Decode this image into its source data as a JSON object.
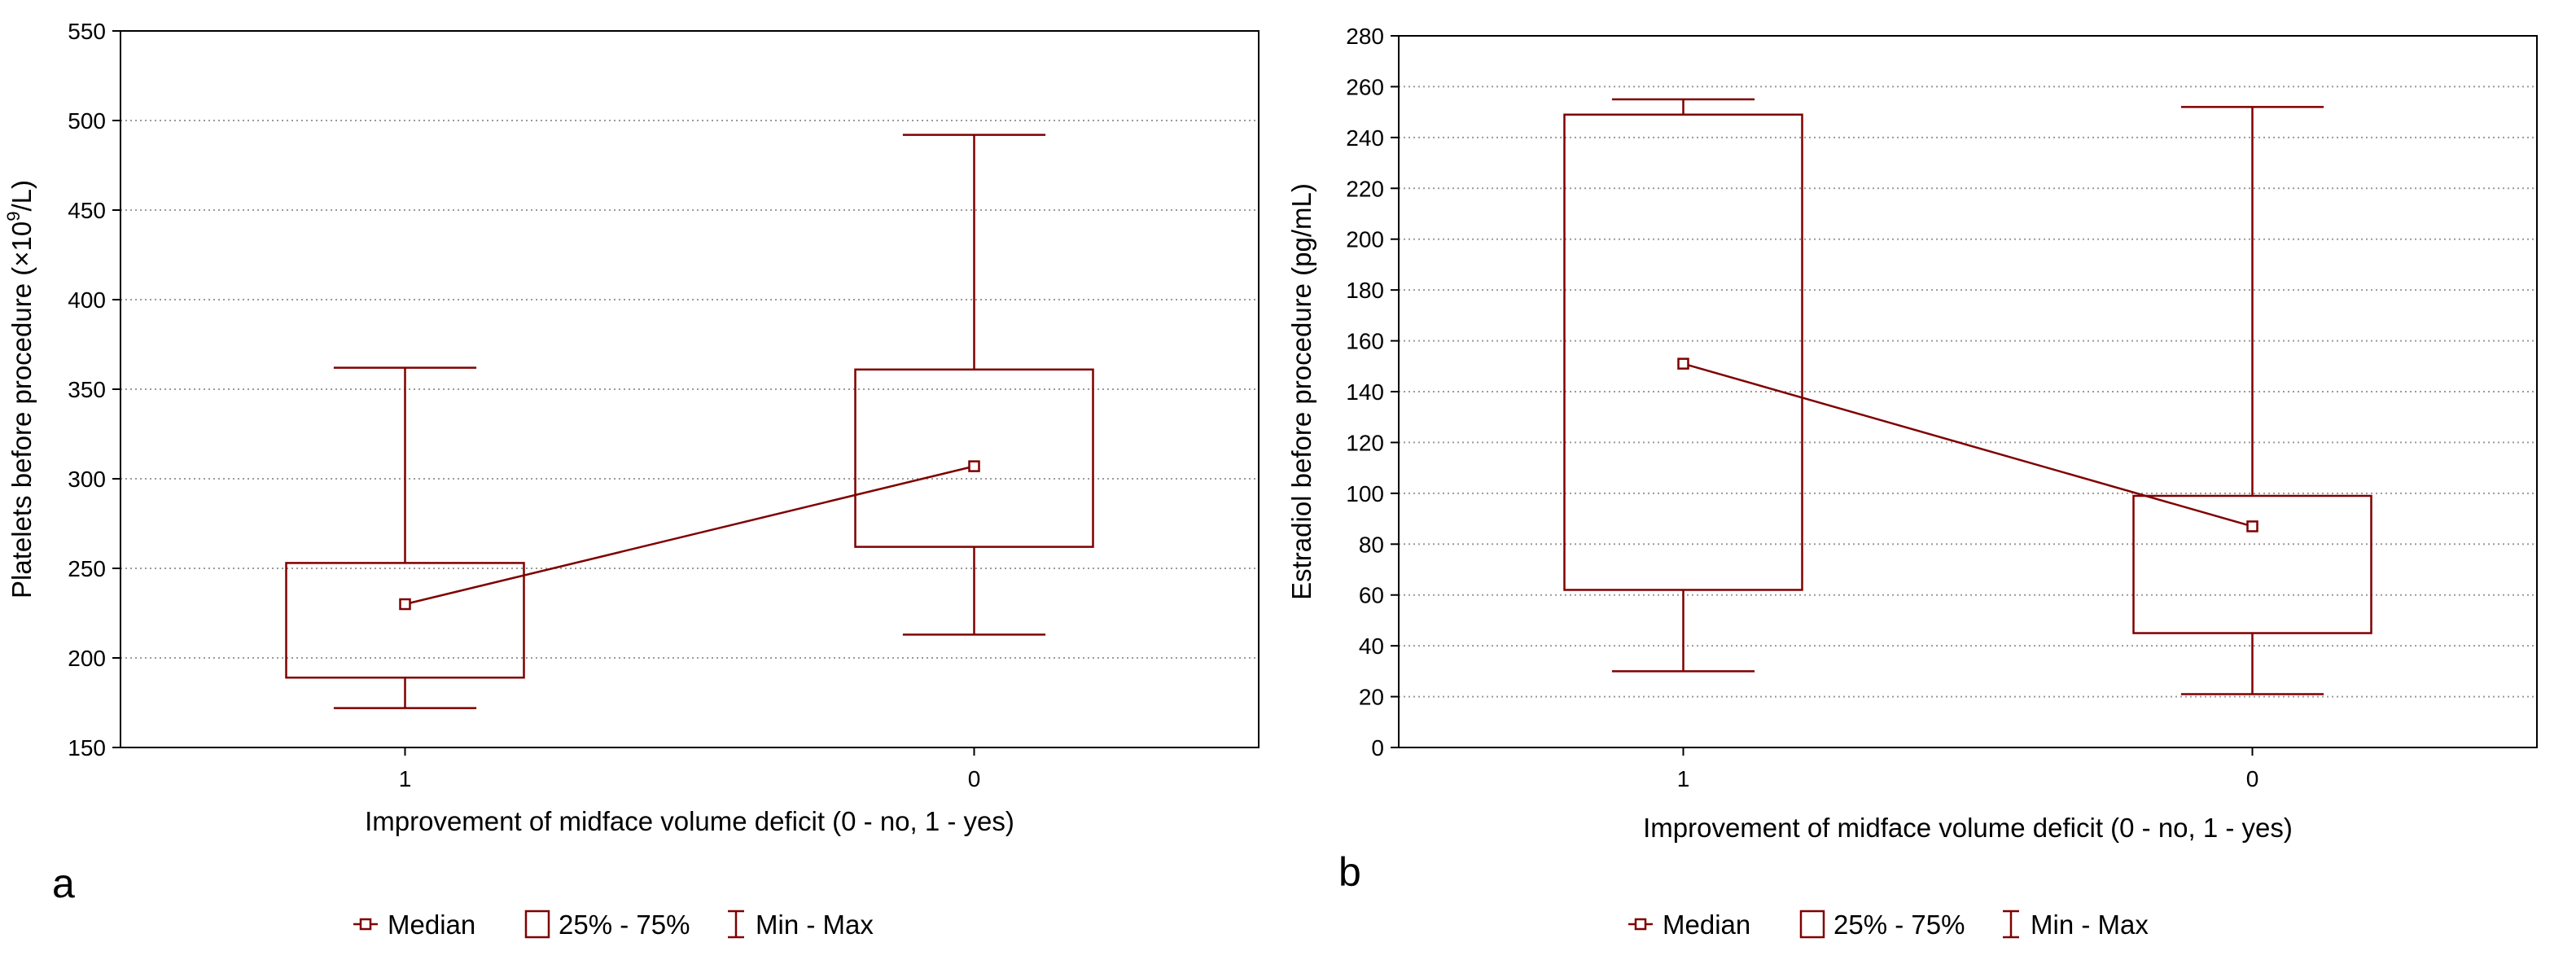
{
  "chart_data": [
    {
      "panel_label": "a",
      "type": "boxplot",
      "ylabel": "Platelets before procedure (×10",
      "ylabel_sup": "9",
      "ylabel_suffix": "/L)",
      "xlabel": "Improvement of midface volume deficit (0 - no, 1 -  yes)",
      "categories": [
        "1",
        "0"
      ],
      "ylim": [
        150,
        550
      ],
      "yticks": [
        150,
        200,
        250,
        300,
        350,
        400,
        450,
        500,
        550
      ],
      "grid": true,
      "boxes": [
        {
          "category": "1",
          "min": 172,
          "q1": 189,
          "median": 230,
          "q3": 253,
          "max": 362
        },
        {
          "category": "0",
          "min": 213,
          "q1": 262,
          "median": 307,
          "q3": 361,
          "max": 492
        }
      ],
      "legend": [
        "Median",
        "25% - 75%",
        "Min - Max"
      ],
      "legend_position": "bottom-center"
    },
    {
      "panel_label": "b",
      "type": "boxplot",
      "ylabel": "Estradiol before procedure (pg/mL)",
      "xlabel": "Improvement of midface volume deficit (0 - no, 1 -  yes)",
      "categories": [
        "1",
        "0"
      ],
      "ylim": [
        0,
        280
      ],
      "yticks": [
        0,
        20,
        40,
        60,
        80,
        100,
        120,
        140,
        160,
        180,
        200,
        220,
        240,
        260,
        280
      ],
      "grid": true,
      "boxes": [
        {
          "category": "1",
          "min": 30,
          "q1": 62,
          "median": 151,
          "q3": 249,
          "max": 255
        },
        {
          "category": "0",
          "min": 21,
          "q1": 45,
          "median": 87,
          "q3": 99,
          "max": 252
        }
      ],
      "legend": [
        "Median",
        "25% - 75%",
        "Min - Max"
      ],
      "legend_position": "bottom-center"
    }
  ],
  "colors": {
    "series": "#7f0000",
    "grid": "#9a9a9a",
    "axis": "#000000"
  }
}
